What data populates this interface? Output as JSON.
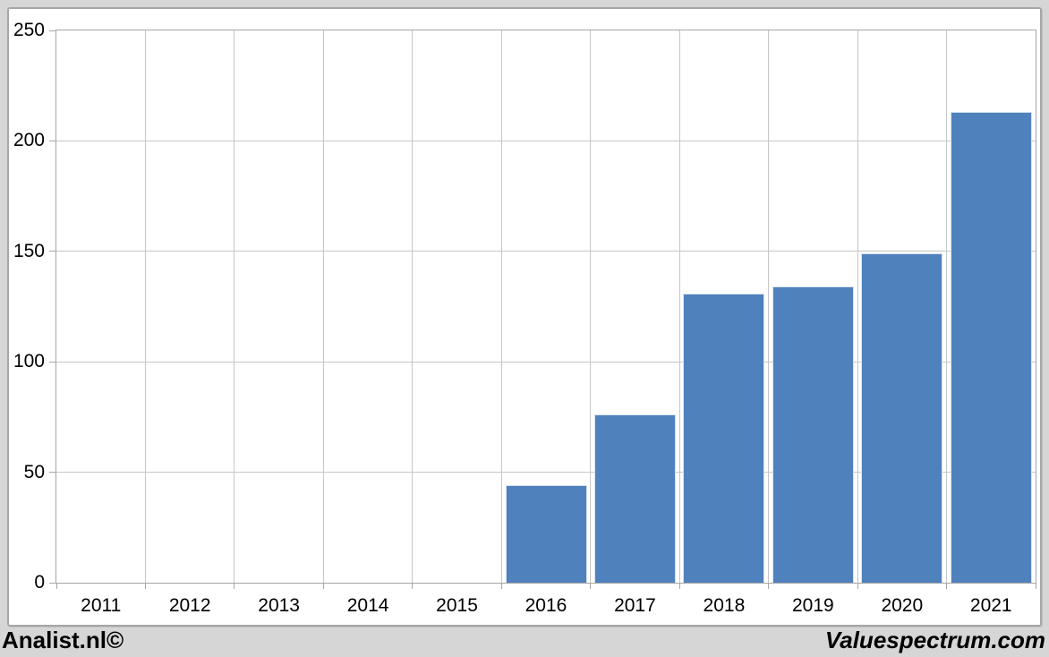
{
  "page": {
    "background_color": "#d6d6d6",
    "footer": {
      "left_text": "Analist.nl©",
      "right_text": "Valuespectrum.com"
    }
  },
  "chart_data": {
    "type": "bar",
    "title": "",
    "xlabel": "",
    "ylabel": "",
    "categories": [
      "2011",
      "2012",
      "2013",
      "2014",
      "2015",
      "2016",
      "2017",
      "2018",
      "2019",
      "2020",
      "2021"
    ],
    "values": [
      null,
      null,
      null,
      null,
      null,
      44,
      76,
      131,
      134,
      149,
      213
    ],
    "ylim": [
      0,
      250
    ],
    "yticks": [
      0,
      50,
      100,
      150,
      200,
      250
    ],
    "grid": true,
    "legend": false,
    "bar_color": "#4f81bd",
    "bar_border_color": "#d9e2ef",
    "gridline_color": "#c6c6c6",
    "plot_border_color": "#a6a6a6",
    "text_color": "#000000"
  }
}
